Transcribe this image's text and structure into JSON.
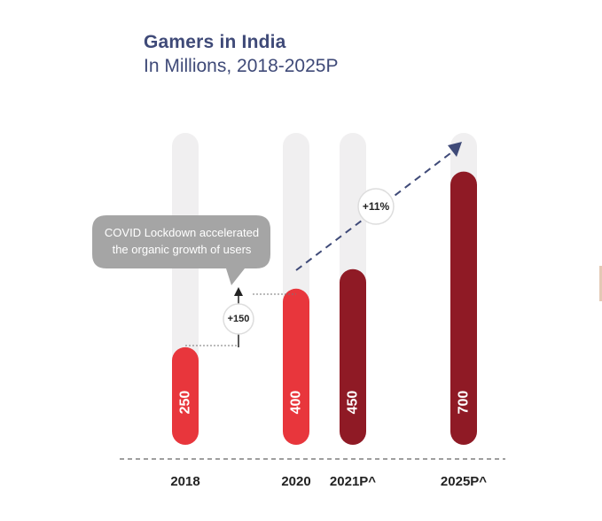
{
  "chart_data": {
    "type": "bar",
    "title": "Gamers in India",
    "subtitle": "In Millions, 2018-2025P",
    "categories": [
      "2018",
      "2020",
      "2021P^",
      "2025P^"
    ],
    "values": [
      250,
      400,
      450,
      700
    ],
    "value_labels": [
      "250",
      "400",
      "450",
      "700"
    ],
    "unit": "Millions",
    "colors": [
      "#e8363c",
      "#e8363c",
      "#8f1a25",
      "#8f1a25"
    ],
    "track_color": "#f0eff0",
    "grid": false,
    "annotations": {
      "callout": "COVID Lockdown accelerated the organic growth of users",
      "callout_lines": [
        "COVID Lockdown accelerated",
        "the organic growth of users"
      ],
      "increase_label": "+150",
      "growth_label": "+11%"
    }
  }
}
